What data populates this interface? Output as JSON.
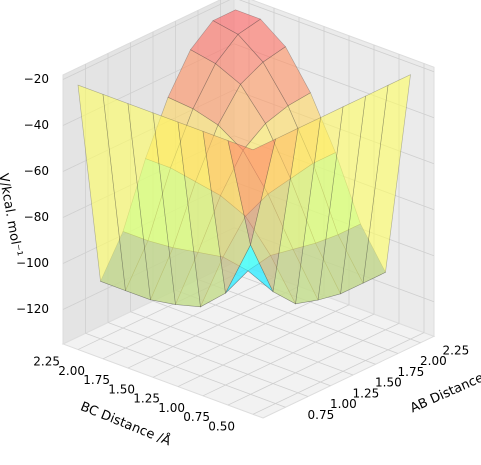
{
  "chart_data": {
    "type": "surface3d",
    "xlabel": "AB Distance /Å",
    "ylabel": "BC Distance /Å",
    "zlabel": "V/kcal. mol⁻¹",
    "x": [
      0.5,
      0.75,
      1.0,
      1.25,
      1.5,
      1.75,
      2.0,
      2.25
    ],
    "y": [
      0.5,
      0.75,
      1.0,
      1.25,
      1.5,
      1.75,
      2.0,
      2.25
    ],
    "z": [
      [
        -20,
        -20,
        -20,
        -20,
        -20,
        -20,
        -20,
        -20
      ],
      [
        -20,
        -70,
        -95,
        -105,
        -108,
        -110,
        -110,
        -110
      ],
      [
        -20,
        -95,
        -90,
        -88,
        -90,
        -92,
        -93,
        -93
      ],
      [
        -20,
        -105,
        -88,
        -75,
        -70,
        -68,
        -66,
        -66
      ],
      [
        -20,
        -108,
        -90,
        -70,
        -55,
        -48,
        -45,
        -44
      ],
      [
        -20,
        -110,
        -92,
        -68,
        -48,
        -35,
        -30,
        -28
      ],
      [
        -20,
        -110,
        -93,
        -66,
        -45,
        -30,
        -22,
        -20
      ],
      [
        -20,
        -110,
        -93,
        -66,
        -44,
        -28,
        -20,
        -20
      ]
    ],
    "colormap": [
      "#2020ff",
      "#40ffff",
      "#ffff60",
      "#ffa060",
      "#ff6060"
    ],
    "xlim": [
      0.5,
      2.4
    ],
    "ylim": [
      0.4,
      2.4
    ],
    "zlim": [
      -135,
      -18
    ],
    "xticks": [
      0.75,
      {
        "value": 1.0,
        "label": "1.00"
      },
      1.25,
      {
        "value": 1.5,
        "label": "1.50"
      },
      1.75,
      {
        "value": 2.0,
        "label": "2.00"
      },
      2.25
    ],
    "yticks": [
      {
        "value": 0.5,
        "label": "0.50"
      },
      0.75,
      {
        "value": 1.0,
        "label": "1.00"
      },
      1.25,
      {
        "value": 1.5,
        "label": "1.50"
      },
      1.75,
      {
        "value": 2.0,
        "label": "2.00"
      },
      2.25
    ],
    "zticks": [
      {
        "value": -20,
        "label": "−20"
      },
      {
        "value": -40,
        "label": "−40"
      },
      {
        "value": -60,
        "label": "−60"
      },
      {
        "value": -80,
        "label": "−80"
      },
      {
        "value": -100,
        "label": "−100"
      },
      {
        "value": -120,
        "label": "−120"
      }
    ],
    "grid": true
  }
}
